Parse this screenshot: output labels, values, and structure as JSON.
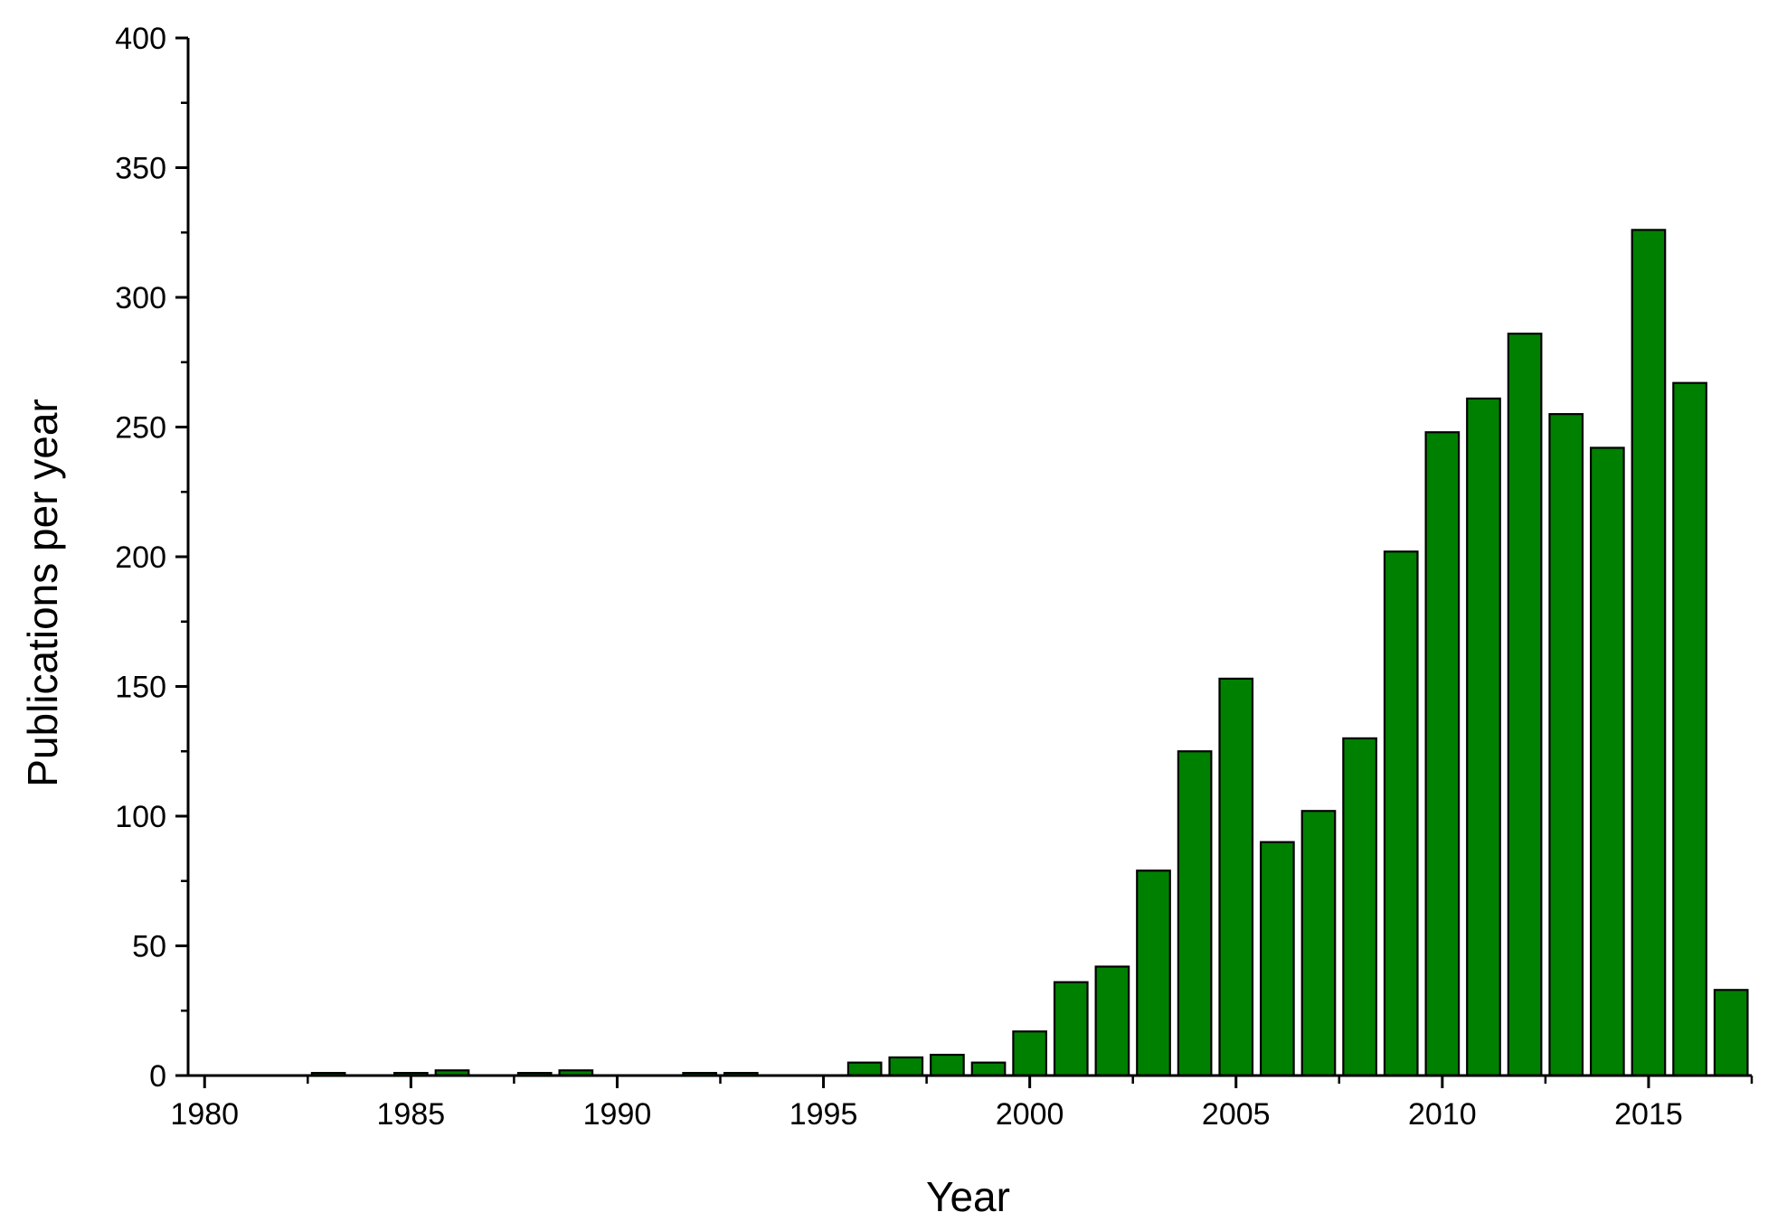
{
  "chart_data": {
    "type": "bar",
    "title": "",
    "xlabel": "Year",
    "ylabel": "Publications per year",
    "xlim": [
      1979.6,
      2017.5
    ],
    "ylim": [
      0,
      400
    ],
    "x_ticks": [
      1980,
      1985,
      1990,
      1995,
      2000,
      2005,
      2010,
      2015
    ],
    "y_ticks": [
      0,
      50,
      100,
      150,
      200,
      250,
      300,
      350,
      400
    ],
    "bar_color": "#008000",
    "bar_edge_color": "#000000",
    "grid": false,
    "legend": "none",
    "x": [
      1983,
      1985,
      1986,
      1988,
      1989,
      1992,
      1993,
      1996,
      1997,
      1998,
      1999,
      2000,
      2001,
      2002,
      2003,
      2004,
      2005,
      2006,
      2007,
      2008,
      2009,
      2010,
      2011,
      2012,
      2013,
      2014,
      2015,
      2016,
      2017
    ],
    "values": [
      1,
      1,
      2,
      1,
      2,
      1,
      1,
      5,
      7,
      8,
      5,
      17,
      36,
      42,
      79,
      125,
      153,
      90,
      102,
      130,
      202,
      248,
      261,
      286,
      255,
      242,
      326,
      267,
      33
    ]
  }
}
